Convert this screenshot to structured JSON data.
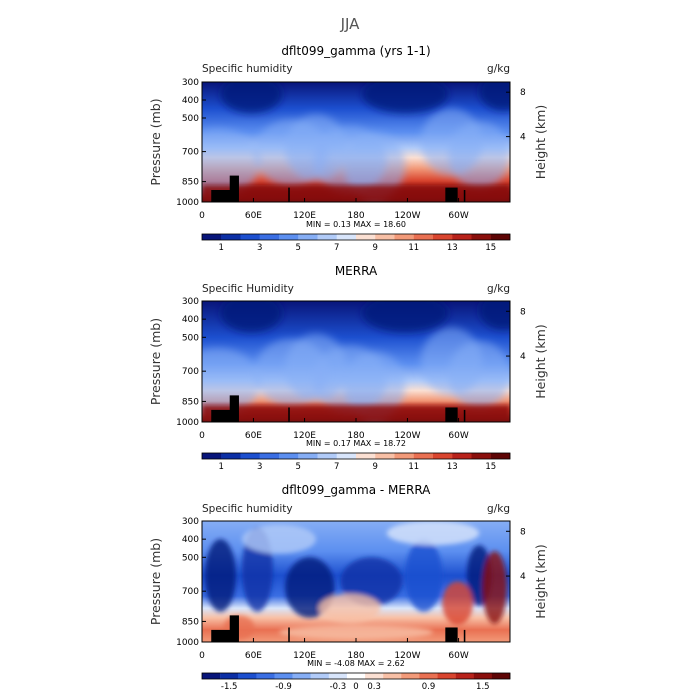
{
  "page_title": "JJA",
  "chart_data": [
    {
      "type": "heatmap",
      "title": "dflt099_gamma (yrs 1-1)",
      "left_label": "Specific humidity",
      "units": "g/kg",
      "ylabel": "Pressure (mb)",
      "ylabel_right": "Height (km)",
      "y_ticks": [
        "300",
        "400",
        "500",
        "700",
        "850",
        "1000"
      ],
      "y_right_ticks": [
        "8",
        "4"
      ],
      "x_ticks": [
        "0",
        "60E",
        "120E",
        "180",
        "120W",
        "60W"
      ],
      "stats_text": "MIN =    0.13   MAX =   18.60",
      "min": 0.13,
      "max": 18.6,
      "colorbar_ticks": [
        "1",
        "3",
        "5",
        "7",
        "9",
        "11",
        "13",
        "15"
      ]
    },
    {
      "type": "heatmap",
      "title": "MERRA",
      "left_label": "Specific Humidity",
      "units": "g/kg",
      "ylabel": "Pressure (mb)",
      "ylabel_right": "Height (km)",
      "y_ticks": [
        "300",
        "400",
        "500",
        "700",
        "850",
        "1000"
      ],
      "y_right_ticks": [
        "8",
        "4"
      ],
      "x_ticks": [
        "0",
        "60E",
        "120E",
        "180",
        "120W",
        "60W"
      ],
      "stats_text": "MIN =    0.17   MAX =   18.72",
      "min": 0.17,
      "max": 18.72,
      "colorbar_ticks": [
        "1",
        "3",
        "5",
        "7",
        "9",
        "11",
        "13",
        "15"
      ]
    },
    {
      "type": "heatmap",
      "title": "dflt099_gamma - MERRA",
      "left_label": "Specific humidity",
      "units": "g/kg",
      "ylabel": "Pressure (mb)",
      "ylabel_right": "Height (km)",
      "y_ticks": [
        "300",
        "400",
        "500",
        "700",
        "850",
        "1000"
      ],
      "y_right_ticks": [
        "8",
        "4"
      ],
      "x_ticks": [
        "0",
        "60E",
        "120E",
        "180",
        "120W",
        "60W"
      ],
      "stats_text": "MIN =   -4.08   MAX =    2.62",
      "min": -4.08,
      "max": 2.62,
      "colorbar_ticks": [
        "-1.5",
        "-0.9",
        "-0.3",
        "0",
        "0.3",
        "0.9",
        "1.5"
      ]
    }
  ],
  "colors": {
    "abs_scale": [
      "#08157a",
      "#0c2fa5",
      "#1c4fcf",
      "#3a6ee3",
      "#5c8ff0",
      "#86aef5",
      "#b1cbf8",
      "#d8e5fb",
      "#fbe0d3",
      "#f8c0a6",
      "#f29a79",
      "#e97052",
      "#d9452f",
      "#b8221a",
      "#8a0f0c",
      "#5e0505"
    ],
    "diff_scale": [
      "#08157a",
      "#0c2fa5",
      "#1c4fcf",
      "#3a6ee3",
      "#5c8ff0",
      "#86aef5",
      "#b1cbf8",
      "#d8e5fb",
      "#ffffff",
      "#fbe0d3",
      "#f8c0a6",
      "#f29a79",
      "#e97052",
      "#d9452f",
      "#b8221a",
      "#8a0f0c",
      "#5e0505"
    ]
  }
}
